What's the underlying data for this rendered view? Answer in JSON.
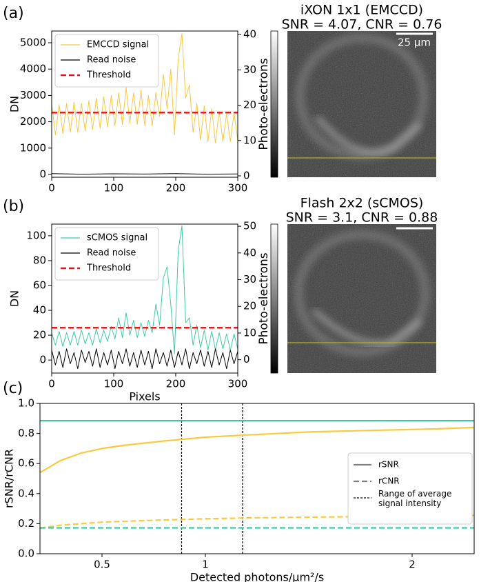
{
  "chart_data": [
    {
      "type": "line",
      "panel_label": "(a)",
      "ylabel": "DN",
      "y2label": "Photo-electrons",
      "image_title": "iXON 1x1 (EMCCD)",
      "image_subtitle": "SNR = 4.07, CNR = 0.76",
      "scale_bar_label": "25 µm",
      "xlim": [
        0,
        300
      ],
      "xticks": [
        0,
        100,
        200,
        300
      ],
      "ylim": [
        -105,
        5445
      ],
      "yticks": [
        0,
        1000,
        2000,
        3000,
        4000,
        5000
      ],
      "y2lim": [
        -0.39,
        40.98
      ],
      "y2ticks": [
        0,
        10,
        20,
        30,
        40
      ],
      "series": [
        {
          "name": "EMCCD signal",
          "color": "#f9c740",
          "dash": "solid",
          "x": [
            0,
            6,
            12,
            18,
            24,
            30,
            36,
            42,
            48,
            54,
            60,
            66,
            72,
            78,
            84,
            90,
            96,
            102,
            108,
            114,
            120,
            126,
            132,
            138,
            144,
            150,
            156,
            162,
            168,
            174,
            180,
            186,
            192,
            198,
            204,
            210,
            216,
            222,
            228,
            234,
            240,
            246,
            252,
            258,
            264,
            270,
            276,
            282,
            288,
            294,
            300
          ],
          "values": [
            2700,
            1500,
            2650,
            1550,
            2700,
            1600,
            2750,
            1600,
            2700,
            1650,
            2800,
            1700,
            2900,
            1750,
            2950,
            1800,
            3000,
            1850,
            3100,
            1900,
            3300,
            1950,
            3100,
            1900,
            3200,
            1850,
            3000,
            1850,
            3100,
            2200,
            3800,
            2500,
            4000,
            1500,
            4400,
            5350,
            2900,
            3400,
            1600,
            2700,
            1300,
            2600,
            1250,
            2500,
            1200,
            2400,
            1250,
            2300,
            1250,
            2350,
            1300
          ]
        },
        {
          "name": "Read noise",
          "color": "#000000",
          "dash": "solid",
          "x": [
            0,
            50,
            100,
            150,
            200,
            250,
            300
          ],
          "values": [
            30,
            10,
            25,
            15,
            30,
            10,
            20
          ]
        },
        {
          "name": "Threshold",
          "color": "#e8191c",
          "dash": "dashed",
          "x": [
            0,
            300
          ],
          "values": [
            2350,
            2350
          ]
        }
      ]
    },
    {
      "type": "line",
      "panel_label": "(b)",
      "ylabel": "DN",
      "y2label": "Photo-electrons",
      "xlabel": "Pixels",
      "image_title": "Flash 2x2 (sCMOS)",
      "image_subtitle": "SNR = 3.1, CNR = 0.88",
      "xlim": [
        0,
        300
      ],
      "xticks": [
        0,
        100,
        200,
        300
      ],
      "ylim": [
        -10.5,
        109.4
      ],
      "yticks": [
        0,
        20,
        40,
        60,
        80,
        100
      ],
      "y2lim": [
        -5,
        50.8
      ],
      "y2ticks": [
        0,
        10,
        20,
        30,
        40,
        50
      ],
      "series": [
        {
          "name": "sCMOS signal",
          "color": "#3cc9a8",
          "dash": "solid",
          "x": [
            0,
            6,
            12,
            18,
            24,
            30,
            36,
            42,
            48,
            54,
            60,
            66,
            72,
            78,
            84,
            90,
            96,
            102,
            108,
            114,
            120,
            126,
            132,
            138,
            144,
            150,
            156,
            162,
            168,
            174,
            180,
            186,
            192,
            198,
            204,
            210,
            216,
            222,
            228,
            234,
            240,
            246,
            252,
            258,
            264,
            270,
            276,
            282,
            288,
            294,
            300
          ],
          "values": [
            22,
            12,
            23,
            11,
            22,
            12,
            23,
            12,
            24,
            13,
            22,
            12,
            25,
            14,
            24,
            15,
            27,
            17,
            34,
            18,
            38,
            20,
            32,
            18,
            30,
            19,
            32,
            22,
            45,
            28,
            66,
            75,
            45,
            5,
            88,
            108,
            30,
            34,
            12,
            28,
            10,
            24,
            8,
            23,
            8,
            22,
            9,
            21,
            8,
            21,
            9
          ]
        },
        {
          "name": "Read noise",
          "color": "#000000",
          "dash": "solid",
          "x": [
            0,
            6,
            12,
            18,
            24,
            30,
            36,
            42,
            48,
            54,
            60,
            66,
            72,
            78,
            84,
            90,
            96,
            102,
            108,
            114,
            120,
            126,
            132,
            138,
            144,
            150,
            156,
            162,
            168,
            174,
            180,
            186,
            192,
            198,
            204,
            210,
            216,
            222,
            228,
            234,
            240,
            246,
            252,
            258,
            264,
            270,
            276,
            282,
            288,
            294,
            300
          ],
          "values": [
            8,
            -4,
            7,
            -6,
            9,
            -3,
            6,
            -7,
            8,
            -2,
            7,
            -5,
            9,
            -6,
            6,
            -4,
            8,
            -7,
            7,
            -3,
            9,
            -5,
            6,
            -6,
            8,
            -4,
            7,
            -7,
            9,
            -3,
            6,
            -5,
            8,
            -6,
            7,
            -4,
            9,
            -7,
            6,
            -3,
            8,
            -5,
            7,
            -6,
            9,
            -4,
            6,
            -7,
            8,
            -3,
            7
          ]
        },
        {
          "name": "Threshold",
          "color": "#e8191c",
          "dash": "dashed",
          "x": [
            0,
            300
          ],
          "values": [
            26,
            26
          ]
        }
      ]
    },
    {
      "type": "line",
      "panel_label": "(c)",
      "ylabel": "rSNR/rCNR",
      "xlabel": "Detected photons/µm²/s",
      "xlim": [
        0.2,
        2.3
      ],
      "xticks": [
        0.5,
        1,
        2
      ],
      "ylim": [
        0,
        1
      ],
      "yticks": [
        {
          "value": 0,
          "label": "0.0"
        },
        {
          "value": 0.2,
          "label": "0.2"
        },
        {
          "value": 0.4,
          "label": "0.4"
        },
        {
          "value": 0.6,
          "label": "0.6"
        },
        {
          "value": 0.8,
          "label": "0.8"
        },
        {
          "value": 1,
          "label": "1.0"
        }
      ],
      "vlines": [
        0.885,
        1.18
      ],
      "legend_entries": [
        {
          "label": "rSNR",
          "color": "#7f7f7f",
          "dash": "solid"
        },
        {
          "label": "rCNR",
          "color": "#7f7f7f",
          "dash": "dashed"
        },
        {
          "label": "Range of average\nsignal intensity",
          "color": "#000000",
          "dash": "dotted"
        }
      ],
      "series": [
        {
          "color": "#3cc9a8",
          "dash": "solid",
          "x": [
            0.2,
            0.3,
            0.4,
            0.5,
            0.6,
            0.8,
            1.0,
            1.2,
            1.5,
            1.8,
            2.1,
            2.3
          ],
          "values": [
            0.885,
            0.885,
            0.885,
            0.885,
            0.885,
            0.885,
            0.885,
            0.885,
            0.885,
            0.885,
            0.885,
            0.885
          ]
        },
        {
          "color": "#fbc93d",
          "dash": "solid",
          "x": [
            0.2,
            0.3,
            0.4,
            0.5,
            0.6,
            0.8,
            1.0,
            1.2,
            1.5,
            1.8,
            2.1,
            2.3
          ],
          "values": [
            0.54,
            0.62,
            0.67,
            0.7,
            0.72,
            0.75,
            0.775,
            0.79,
            0.81,
            0.82,
            0.83,
            0.84
          ]
        },
        {
          "color": "#fbc93d",
          "dash": "dashed",
          "x": [
            0.2,
            0.3,
            0.4,
            0.5,
            0.6,
            0.8,
            1.0,
            1.2,
            1.5,
            1.8,
            2.1,
            2.3
          ],
          "values": [
            0.17,
            0.19,
            0.2,
            0.21,
            0.215,
            0.225,
            0.232,
            0.238,
            0.243,
            0.248,
            0.252,
            0.255
          ]
        },
        {
          "color": "#3cc9a8",
          "dash": "dashed",
          "x": [
            0.2,
            0.3,
            0.4,
            0.5,
            0.6,
            0.8,
            1.0,
            1.2,
            1.5,
            1.8,
            2.1,
            2.3
          ],
          "values": [
            0.172,
            0.172,
            0.172,
            0.172,
            0.172,
            0.172,
            0.172,
            0.172,
            0.172,
            0.172,
            0.172,
            0.172
          ]
        }
      ]
    }
  ]
}
